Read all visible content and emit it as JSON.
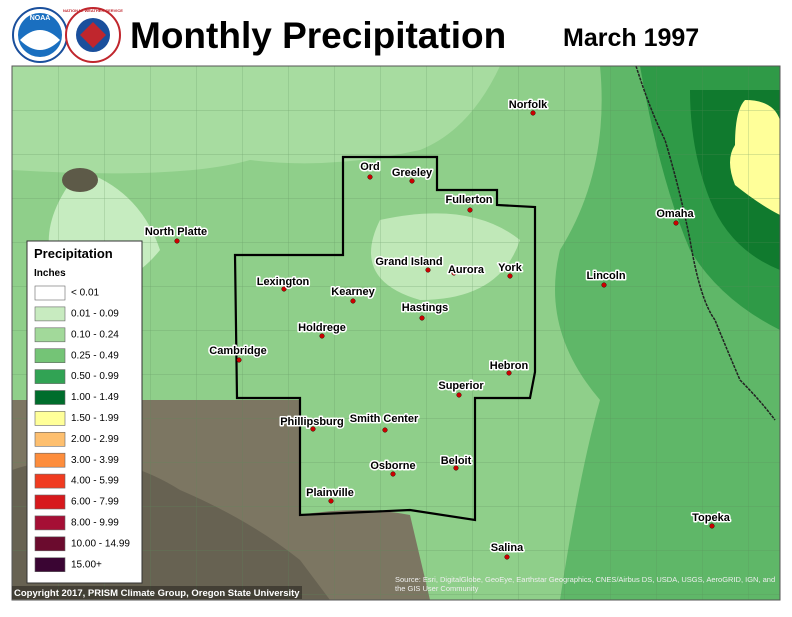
{
  "header": {
    "title": "Monthly Precipitation",
    "date": "March 1997"
  },
  "logos": {
    "noaa": "NOAA",
    "nws": "NATIONAL WEATHER SERVICE"
  },
  "cities": [
    "Norfolk",
    "Ord",
    "Greeley",
    "Fullerton",
    "North Platte",
    "Omaha",
    "Lexington",
    "Grand Island",
    "Aurora",
    "York",
    "Lincoln",
    "Kearney",
    "Hastings",
    "Holdrege",
    "Cambridge",
    "Hebron",
    "Superior",
    "Phillipsburg",
    "Smith Center",
    "Beloit",
    "Osborne",
    "Plainville",
    "Topeka",
    "Salina"
  ],
  "legend": {
    "title": "Precipitation",
    "units": "Inches",
    "items": [
      {
        "label": "< 0.01",
        "color": "#ffffff"
      },
      {
        "label": "0.01 - 0.09",
        "color": "#c8ebc0"
      },
      {
        "label": "0.10 - 0.24",
        "color": "#a2d99a"
      },
      {
        "label": "0.25 - 0.49",
        "color": "#74c476"
      },
      {
        "label": "0.50 - 0.99",
        "color": "#31a354"
      },
      {
        "label": "1.00 - 1.49",
        "color": "#006d2c"
      },
      {
        "label": "1.50 - 1.99",
        "color": "#ffff99"
      },
      {
        "label": "2.00 - 2.99",
        "color": "#fdbf6f"
      },
      {
        "label": "3.00 - 3.99",
        "color": "#fd8d3c"
      },
      {
        "label": "4.00 - 5.99",
        "color": "#f03b20"
      },
      {
        "label": "6.00 - 7.99",
        "color": "#d7191c"
      },
      {
        "label": "8.00 - 9.99",
        "color": "#a50f35"
      },
      {
        "label": "10.00 - 14.99",
        "color": "#6b0b2e"
      },
      {
        "label": "15.00+",
        "color": "#3a0533"
      }
    ]
  },
  "footer": {
    "copyright": "Copyright 2017, PRISM Climate Group, Oregon State University",
    "source": "Source: Esri, DigitalGlobe, GeoEye, Earthstar Geographics, CNES/Airbus DS, USDA, USGS, AeroGRID, IGN, and the GIS User Community"
  }
}
